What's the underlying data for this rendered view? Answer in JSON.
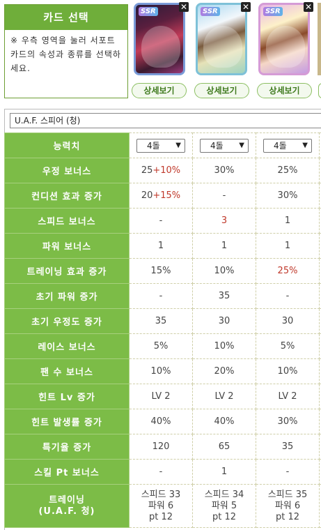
{
  "panel": {
    "title": "카드 선택",
    "instruction": "※ 우측 영역을 눌러 서포트 카드의 속성과 종류를 선택하세요."
  },
  "cards": [
    {
      "rarity": "SSR",
      "close": "✕",
      "detail_label": "상세보기"
    },
    {
      "rarity": "SSR",
      "close": "✕",
      "detail_label": "상세보기"
    },
    {
      "rarity": "SSR",
      "close": "✕",
      "detail_label": "상세보기"
    }
  ],
  "scenario_select": {
    "value": "U.A.F. 스피어 (청)"
  },
  "level_row": {
    "label": "능력치",
    "values": [
      "4돌",
      "4돌",
      "4돌"
    ]
  },
  "rows": [
    {
      "label": "우정 보너스",
      "values": [
        [
          "25",
          "+10%"
        ],
        [
          "30%",
          ""
        ],
        [
          "25%",
          ""
        ]
      ]
    },
    {
      "label": "컨디션 효과 증가",
      "values": [
        [
          "20",
          "+15%"
        ],
        [
          "-",
          ""
        ],
        [
          "30%",
          ""
        ]
      ]
    },
    {
      "label": "스피드 보너스",
      "values": [
        [
          "-",
          ""
        ],
        [
          "",
          "3"
        ],
        [
          "1",
          ""
        ]
      ]
    },
    {
      "label": "파워 보너스",
      "values": [
        [
          "1",
          ""
        ],
        [
          "1",
          ""
        ],
        [
          "1",
          ""
        ]
      ]
    },
    {
      "label": "트레이닝 효과 증가",
      "values": [
        [
          "15%",
          ""
        ],
        [
          "10%",
          ""
        ],
        [
          "",
          "25%"
        ]
      ]
    },
    {
      "label": "초기 파워 증가",
      "values": [
        [
          "-",
          ""
        ],
        [
          "35",
          ""
        ],
        [
          "-",
          ""
        ]
      ]
    },
    {
      "label": "초기 우정도 증가",
      "values": [
        [
          "35",
          ""
        ],
        [
          "30",
          ""
        ],
        [
          "30",
          ""
        ]
      ]
    },
    {
      "label": "레이스 보너스",
      "values": [
        [
          "5%",
          ""
        ],
        [
          "10%",
          ""
        ],
        [
          "5%",
          ""
        ]
      ]
    },
    {
      "label": "팬 수 보너스",
      "values": [
        [
          "10%",
          ""
        ],
        [
          "20%",
          ""
        ],
        [
          "10%",
          ""
        ]
      ]
    },
    {
      "label": "힌트 Lv 증가",
      "values": [
        [
          "LV 2",
          ""
        ],
        [
          "LV 2",
          ""
        ],
        [
          "LV 2",
          ""
        ]
      ]
    },
    {
      "label": "힌트 발생률 증가",
      "values": [
        [
          "40%",
          ""
        ],
        [
          "40%",
          ""
        ],
        [
          "30%",
          ""
        ]
      ]
    },
    {
      "label": "특기율 증가",
      "values": [
        [
          "120",
          ""
        ],
        [
          "65",
          ""
        ],
        [
          "35",
          ""
        ]
      ]
    },
    {
      "label": "스킬 Pt 보너스",
      "values": [
        [
          "-",
          ""
        ],
        [
          "1",
          ""
        ],
        [
          "-",
          ""
        ]
      ]
    }
  ],
  "training_row": {
    "label_line1": "트레이닝",
    "label_line2": "(U.A.F. 청)",
    "values": [
      [
        "스피드 33",
        "파워 6",
        "pt 12"
      ],
      [
        "스피드 34",
        "파워 5",
        "pt 12"
      ],
      [
        "스피드 35",
        "파워 6",
        "pt 12"
      ]
    ]
  },
  "colors": {
    "header_green": "#7cbc47",
    "highlight_red": "#c0392b"
  }
}
